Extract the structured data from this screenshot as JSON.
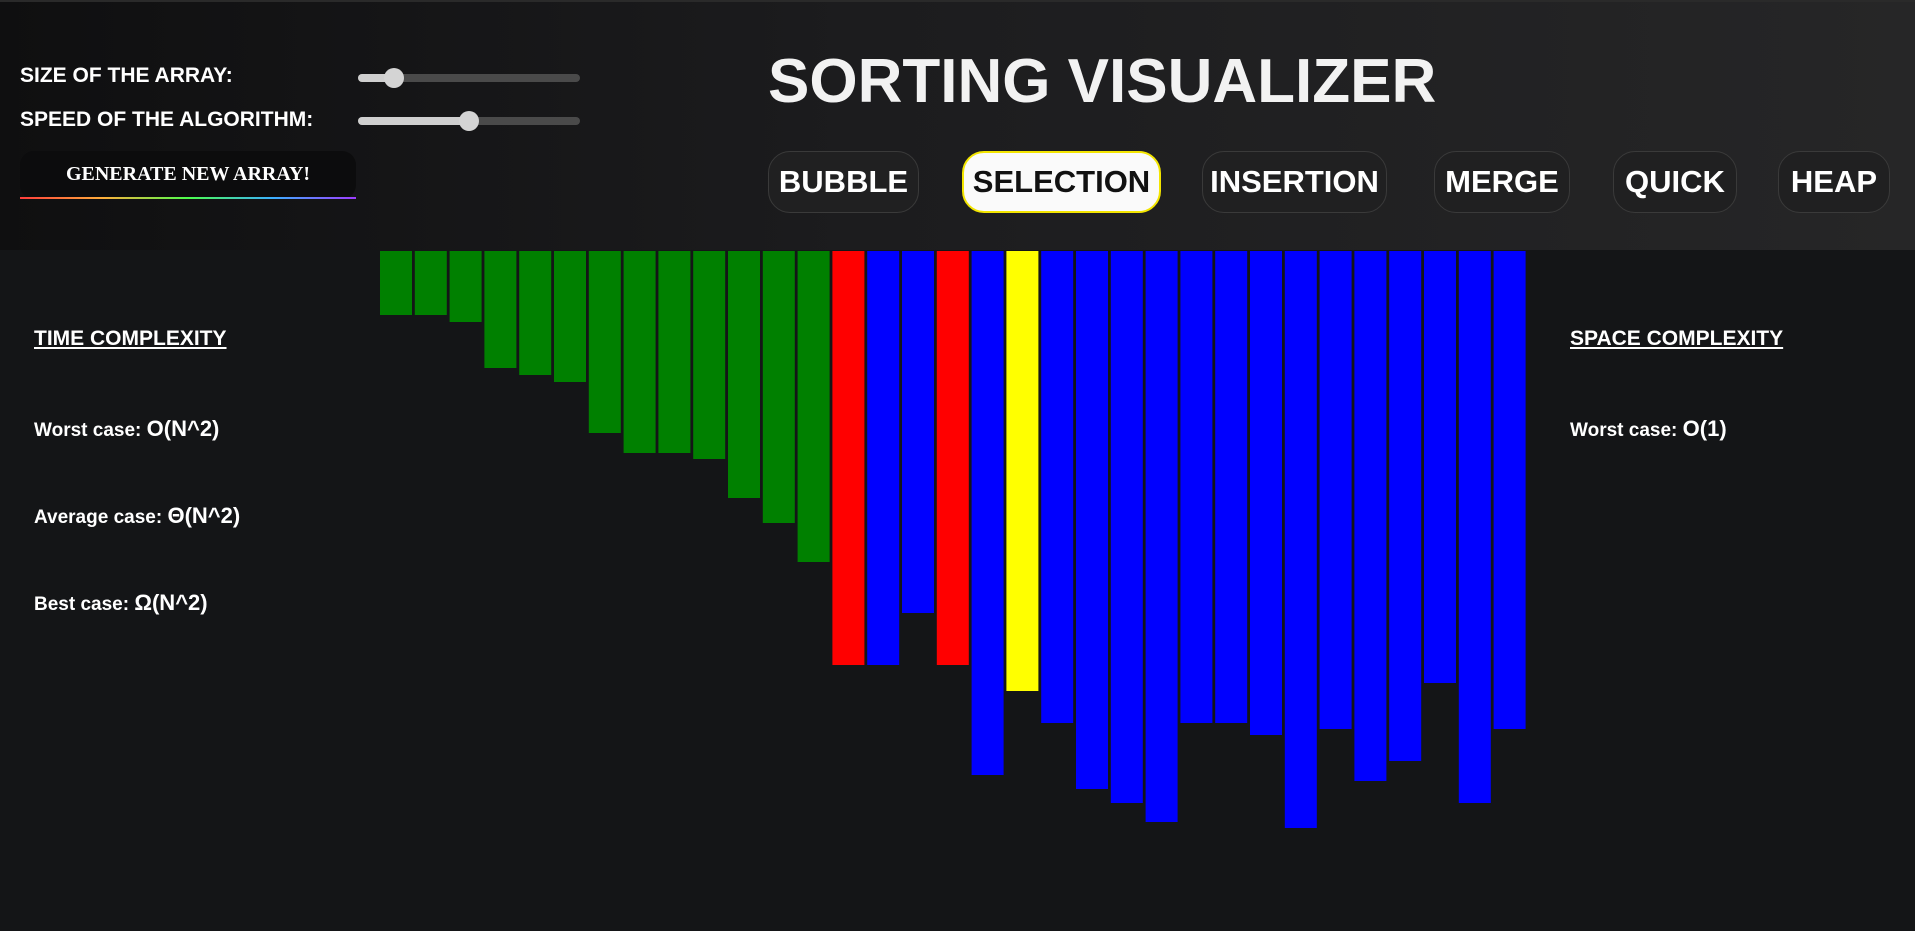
{
  "controls": {
    "size_label": "SIZE OF THE ARRAY:",
    "size_value": 0.16,
    "speed_label": "SPEED OF THE ALGORITHM:",
    "speed_value": 0.5,
    "generate_label": "GENERATE NEW ARRAY!"
  },
  "title": "SORTING VISUALIZER",
  "algorithms": [
    {
      "label": "BUBBLE",
      "active": false
    },
    {
      "label": "SELECTION",
      "active": true
    },
    {
      "label": "INSERTION",
      "active": false
    },
    {
      "label": "MERGE",
      "active": false
    },
    {
      "label": "QUICK",
      "active": false
    },
    {
      "label": "HEAP",
      "active": false
    }
  ],
  "time_complexity": {
    "heading": "TIME COMPLEXITY",
    "worst_label": "Worst case:",
    "worst_value": "O(N^2)",
    "average_label": "Average case:",
    "average_value": "Θ(N^2)",
    "best_label": "Best case:",
    "best_value": "Ω(N^2)"
  },
  "space_complexity": {
    "heading": "SPACE COMPLEXITY",
    "worst_label": "Worst case:",
    "worst_value": "O(1)"
  },
  "colors": {
    "sorted": "#008000",
    "compare": "#ff0000",
    "current": "#ffff00",
    "unsorted": "#0000ff"
  },
  "array": {
    "values": [
      64,
      64,
      71,
      117,
      124,
      131,
      182,
      202,
      202,
      208,
      247,
      272,
      311,
      414,
      414,
      362,
      414,
      524,
      440,
      472,
      538,
      552,
      571,
      472,
      472,
      484,
      577,
      478,
      530,
      510,
      432,
      552,
      478
    ],
    "states": [
      "sorted",
      "sorted",
      "sorted",
      "sorted",
      "sorted",
      "sorted",
      "sorted",
      "sorted",
      "sorted",
      "sorted",
      "sorted",
      "sorted",
      "sorted",
      "compare",
      "unsorted",
      "unsorted",
      "compare",
      "unsorted",
      "current",
      "unsorted",
      "unsorted",
      "unsorted",
      "unsorted",
      "unsorted",
      "unsorted",
      "unsorted",
      "unsorted",
      "unsorted",
      "unsorted",
      "unsorted",
      "unsorted",
      "unsorted",
      "unsorted"
    ],
    "max": 600
  }
}
